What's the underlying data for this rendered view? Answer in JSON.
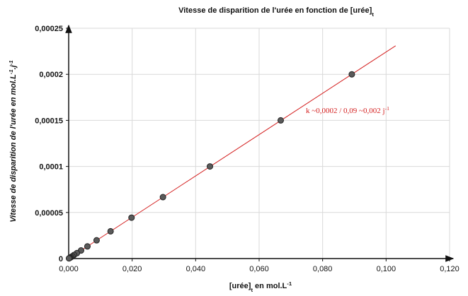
{
  "chart_data": {
    "type": "scatter",
    "title": [
      {
        "text": "Vitesse de disparition de l'urée en fonction de [urée]"
      },
      {
        "sub": "t"
      }
    ],
    "x_label": [
      {
        "text": "[urée]"
      },
      {
        "sub": "t"
      },
      {
        "text": "  en mol.L"
      },
      {
        "sup": "-1"
      }
    ],
    "y_label": [
      {
        "text": "Vitesse de disparition de l'urée  en mol.L"
      },
      {
        "sup": "-1"
      },
      {
        "text": ".j"
      },
      {
        "sup": "-1"
      }
    ],
    "annotation": [
      {
        "text": "k ~0,0002 / 0,09 ~0,002 j"
      },
      {
        "sup": "-1"
      }
    ],
    "annotation_color": "#d42020",
    "x": [
      0.0892,
      0.0668,
      0.0445,
      0.0297,
      0.0198,
      0.0132,
      0.0088,
      0.0059,
      0.0039,
      0.0026,
      0.0017,
      0.0012,
      0.0008,
      0.0005,
      0.0003,
      0.0001
    ],
    "series": [
      {
        "color": "#5a5a5a",
        "values": [
          0.0002,
          0.00015,
          0.0001,
          6.67e-05,
          4.44e-05,
          2.96e-05,
          1.98e-05,
          1.32e-05,
          8.8e-06,
          5.9e-06,
          3.9e-06,
          2.6e-06,
          1.7e-06,
          1.1e-06,
          7e-07,
          2e-07
        ]
      }
    ],
    "trendline": {
      "x": [
        0,
        0.103
      ],
      "values": [
        0,
        0.000231
      ],
      "color": "#d42020"
    },
    "xlim": [
      0,
      0.12
    ],
    "ylim": [
      0,
      0.00025
    ],
    "xticks": [
      {
        "value": 0,
        "label": "0,000"
      },
      {
        "value": 0.02,
        "label": "0,020"
      },
      {
        "value": 0.04,
        "label": "0,040"
      },
      {
        "value": 0.06,
        "label": "0,060"
      },
      {
        "value": 0.08,
        "label": "0,080"
      },
      {
        "value": 0.1,
        "label": "0,100"
      },
      {
        "value": 0.12,
        "label": "0,120"
      }
    ],
    "yticks": [
      0,
      {
        "value": 5e-05,
        "label": "0,00005"
      },
      {
        "value": 0.0001,
        "label": "0,0001"
      },
      {
        "value": 0.00015,
        "label": "0,00015"
      },
      {
        "value": 0.0002,
        "label": "0,0002"
      },
      {
        "value": 0.00025,
        "label": "0,00025"
      }
    ],
    "grid": true
  }
}
